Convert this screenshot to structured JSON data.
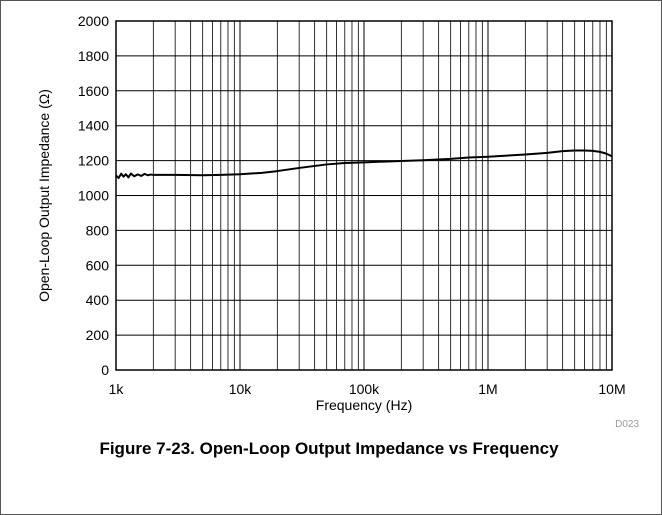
{
  "chart_data": {
    "type": "line",
    "title": "",
    "xlabel": "Frequency (Hz)",
    "ylabel": "Open-Loop Output Impedance (Ω)",
    "x_scale": "log",
    "xlim": [
      1000,
      10000000
    ],
    "ylim": [
      0,
      2000
    ],
    "x_ticks": [
      {
        "value": 1000,
        "label": "1k"
      },
      {
        "value": 10000,
        "label": "10k"
      },
      {
        "value": 100000,
        "label": "100k"
      },
      {
        "value": 1000000,
        "label": "1M"
      },
      {
        "value": 10000000,
        "label": "10M"
      }
    ],
    "y_ticks": [
      0,
      200,
      400,
      600,
      800,
      1000,
      1200,
      1400,
      1600,
      1800,
      2000
    ],
    "grid": true,
    "series": [
      {
        "color": "#000000",
        "x": [
          1000,
          1050,
          1100,
          1150,
          1200,
          1260,
          1320,
          1400,
          1500,
          1600,
          1700,
          1800,
          1900,
          2000,
          3000,
          5000,
          7000,
          10000,
          15000,
          20000,
          30000,
          50000,
          70000,
          100000,
          200000,
          300000,
          500000,
          700000,
          1000000,
          2000000,
          3000000,
          4000000,
          5000000,
          6000000,
          7000000,
          8000000,
          9000000,
          10000000
        ],
        "y": [
          1115,
          1100,
          1125,
          1108,
          1122,
          1104,
          1126,
          1110,
          1121,
          1112,
          1124,
          1116,
          1120,
          1118,
          1118,
          1116,
          1118,
          1122,
          1130,
          1140,
          1158,
          1178,
          1186,
          1190,
          1198,
          1202,
          1210,
          1218,
          1222,
          1235,
          1244,
          1254,
          1258,
          1258,
          1256,
          1250,
          1240,
          1224
        ]
      }
    ]
  },
  "figure": {
    "id": "D023",
    "caption": "Figure 7-23. Open-Loop Output Impedance vs Frequency"
  }
}
